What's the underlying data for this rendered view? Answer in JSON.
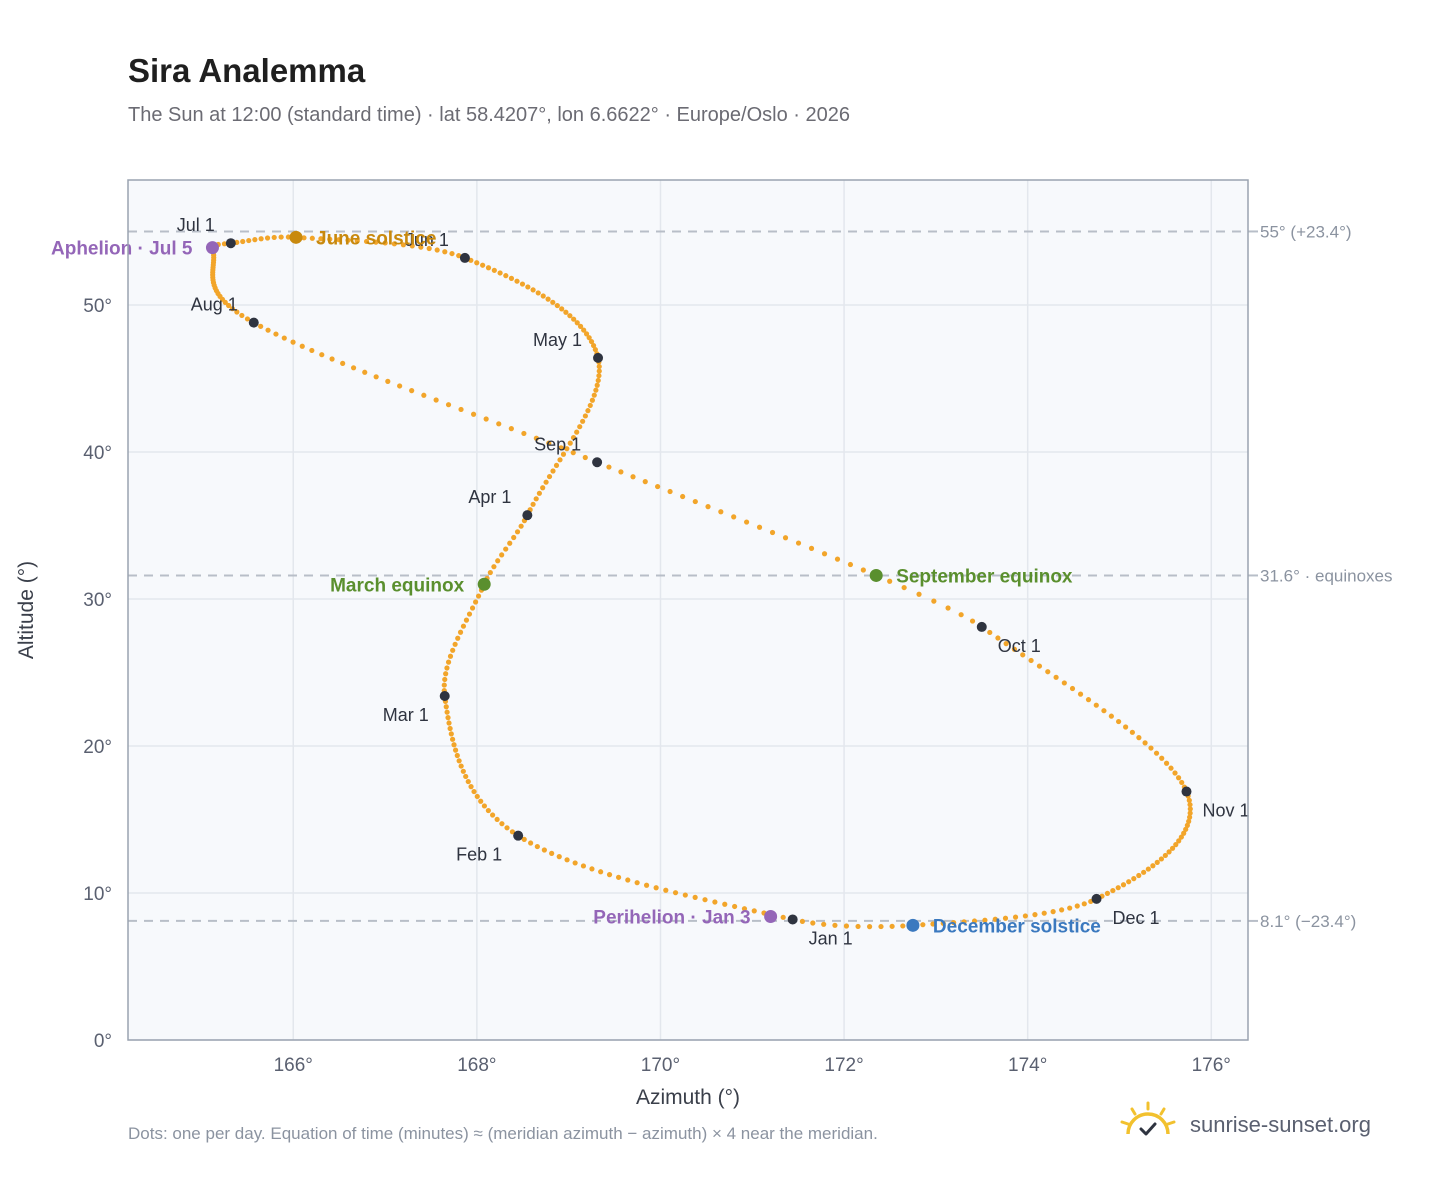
{
  "title": "Sira Analemma",
  "subtitle": "The Sun at 12:00 (standard time) · lat 58.4207°, lon 6.6622° · Europe/Oslo · 2026",
  "footnote": "Dots: one per day. Equation of time (minutes) ≈ (meridian azimuth − azimuth) × 4 near the meridian.",
  "brand": "sunrise-sunset.org",
  "colors": {
    "curve": "#f2a52a",
    "month_marker": "#2f3440",
    "solstice_june": "#c8890e",
    "solstice_december": "#3b79bf",
    "equinox": "#5a8f2e",
    "apsis": "#9466b8",
    "reference_line": "#b8bec8",
    "plot_bg": "#f7f9fc",
    "grid": "#e3e7ed",
    "frame": "#9aa3b0"
  },
  "chart_data": {
    "type": "scatter",
    "xlabel": "Azimuth (°)",
    "ylabel": "Altitude (°)",
    "xlim": [
      164.2,
      176.4
    ],
    "ylim": [
      0,
      58.5
    ],
    "xticks": [
      166,
      168,
      170,
      172,
      174,
      176
    ],
    "yticks": [
      0,
      10,
      20,
      30,
      40,
      50
    ],
    "xtick_labels": [
      "166°",
      "168°",
      "170°",
      "172°",
      "174°",
      "176°"
    ],
    "ytick_labels": [
      "0°",
      "10°",
      "20°",
      "30°",
      "40°",
      "50°"
    ],
    "grid": true,
    "reference_lines": [
      {
        "y": 55.0,
        "label": "55° (+23.4°)"
      },
      {
        "y": 31.6,
        "label": "31.6° · equinoxes"
      },
      {
        "y": 8.1,
        "label": "8.1° (−23.4°)"
      }
    ],
    "path_knots": [
      {
        "day": 0,
        "az": 171.44,
        "alt": 8.2
      },
      {
        "day": 31,
        "az": 168.45,
        "alt": 13.9
      },
      {
        "day": 59,
        "az": 167.65,
        "alt": 23.4
      },
      {
        "day": 78,
        "az": 168.08,
        "alt": 31.0
      },
      {
        "day": 90,
        "az": 168.55,
        "alt": 35.7
      },
      {
        "day": 120,
        "az": 169.32,
        "alt": 46.4
      },
      {
        "day": 151,
        "az": 167.87,
        "alt": 53.2
      },
      {
        "day": 171,
        "az": 166.03,
        "alt": 54.6
      },
      {
        "day": 181,
        "az": 165.32,
        "alt": 54.2
      },
      {
        "day": 185,
        "az": 165.12,
        "alt": 53.9
      },
      {
        "day": 212,
        "az": 165.57,
        "alt": 48.8
      },
      {
        "day": 243,
        "az": 169.31,
        "alt": 39.3
      },
      {
        "day": 265,
        "az": 172.35,
        "alt": 31.6
      },
      {
        "day": 273,
        "az": 173.5,
        "alt": 28.1
      },
      {
        "day": 304,
        "az": 175.73,
        "alt": 16.9
      },
      {
        "day": 334,
        "az": 174.75,
        "alt": 9.6
      },
      {
        "day": 354,
        "az": 172.75,
        "alt": 7.8
      },
      {
        "day": 365,
        "az": 171.44,
        "alt": 8.2
      }
    ],
    "month_markers": [
      {
        "label": "Jan 1",
        "az": 171.44,
        "alt": 8.2,
        "anchor": "below-right"
      },
      {
        "label": "Feb 1",
        "az": 168.45,
        "alt": 13.9,
        "anchor": "below-left"
      },
      {
        "label": "Mar 1",
        "az": 167.65,
        "alt": 23.4,
        "anchor": "below-left"
      },
      {
        "label": "Apr 1",
        "az": 168.55,
        "alt": 35.7,
        "anchor": "above-left"
      },
      {
        "label": "May 1",
        "az": 169.32,
        "alt": 46.4,
        "anchor": "above-left"
      },
      {
        "label": "Jun 1",
        "az": 167.87,
        "alt": 53.2,
        "anchor": "above-left"
      },
      {
        "label": "Jul 1",
        "az": 165.32,
        "alt": 54.2,
        "anchor": "above-left"
      },
      {
        "label": "Aug 1",
        "az": 165.57,
        "alt": 48.8,
        "anchor": "above-left"
      },
      {
        "label": "Sep 1",
        "az": 169.31,
        "alt": 39.3,
        "anchor": "above-left"
      },
      {
        "label": "Oct 1",
        "az": 173.5,
        "alt": 28.1,
        "anchor": "below-right"
      },
      {
        "label": "Nov 1",
        "az": 175.73,
        "alt": 16.9,
        "anchor": "below-right"
      },
      {
        "label": "Dec 1",
        "az": 174.75,
        "alt": 9.6,
        "anchor": "below-right"
      }
    ],
    "events": [
      {
        "label": "June solstice",
        "az": 166.03,
        "alt": 54.6,
        "kind": "solstice_june",
        "side": "right"
      },
      {
        "label": "Aphelion · Jul 5",
        "az": 165.12,
        "alt": 53.9,
        "kind": "apsis",
        "side": "left"
      },
      {
        "label": "March equinox",
        "az": 168.08,
        "alt": 31.0,
        "kind": "equinox",
        "side": "left"
      },
      {
        "label": "September equinox",
        "az": 172.35,
        "alt": 31.6,
        "kind": "equinox",
        "side": "right"
      },
      {
        "label": "Perihelion · Jan 3",
        "az": 171.2,
        "alt": 8.4,
        "kind": "apsis",
        "side": "left"
      },
      {
        "label": "December solstice",
        "az": 172.75,
        "alt": 7.8,
        "kind": "solstice_december",
        "side": "right"
      }
    ]
  }
}
